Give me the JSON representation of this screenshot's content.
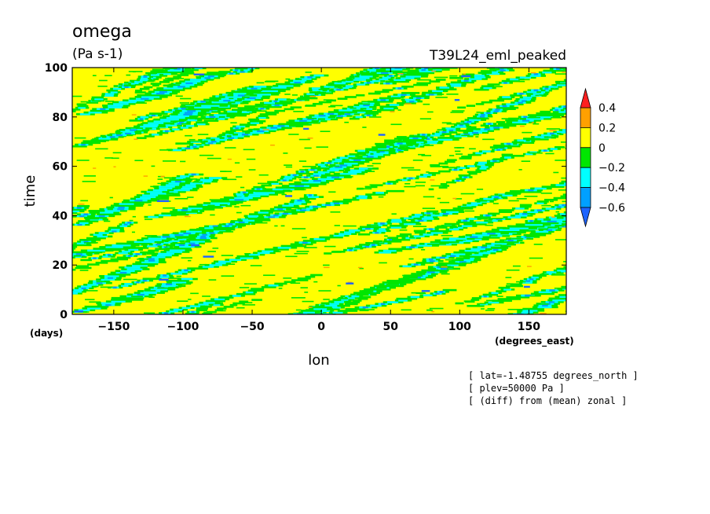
{
  "chart_data": {
    "type": "heatmap",
    "title": "omega",
    "units": "(Pa s-1)",
    "experiment": "T39L24_eml_peaked",
    "xlabel": "lon",
    "x_units": "(degrees_east)",
    "ylabel": "time",
    "y_units": "(days)",
    "xlim": [
      -180,
      177
    ],
    "ylim": [
      0,
      100
    ],
    "x_ticks": [
      -150,
      -100,
      -50,
      0,
      50,
      100,
      150
    ],
    "y_ticks": [
      0,
      20,
      40,
      60,
      80,
      100
    ],
    "colorbar": {
      "levels": [
        -0.6,
        -0.4,
        -0.2,
        0,
        0.2,
        0.4
      ],
      "level_labels": [
        "-0.6",
        "-0.4",
        "-0.2",
        "0",
        "0.2",
        "0.4"
      ],
      "colors": [
        "#1e64ff",
        "#00a0ff",
        "#00ffff",
        "#00e600",
        "#ffff00",
        "#ffa000",
        "#ff2020"
      ]
    },
    "dominant_band": "0 to 0.2",
    "pattern": "eastward-propagating negative omega streaks (slope down-left to up-right) on a predominantly positive background",
    "annotations": [
      "[ lat=-1.48755 degrees_north ]",
      "[ plev=50000 Pa ]",
      "[ (diff) from (mean) zonal ]"
    ]
  }
}
